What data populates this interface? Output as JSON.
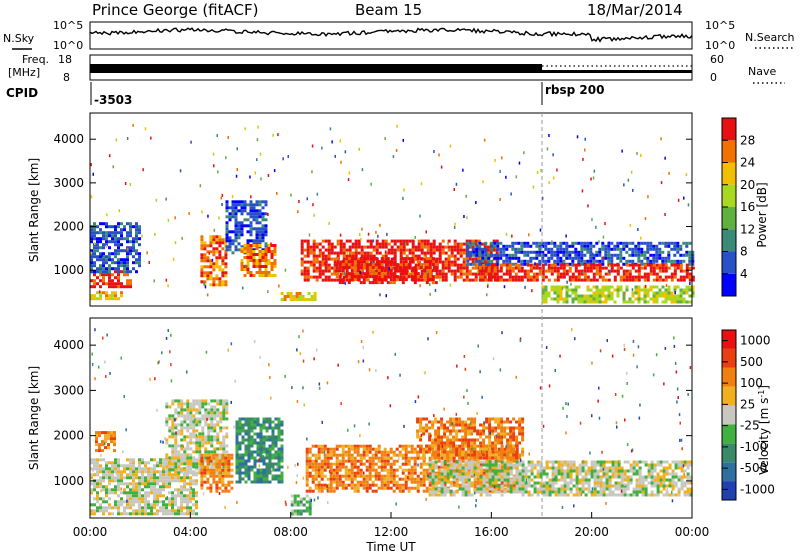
{
  "header": {
    "station": "Prince George (fitACF)",
    "beam": "Beam 15",
    "date": "18/Mar/2014"
  },
  "top_panels": {
    "nsky_label": "N.Sky",
    "nsearch_label": "N.Search",
    "freq_label_1": "Freq.",
    "freq_label_2": "[MHz]",
    "nave_label": "Nave",
    "cpid_label": "CPID",
    "left_ticks_noise": [
      "10^5",
      "10^0"
    ],
    "right_ticks_noise": [
      "10^5",
      "10^0"
    ],
    "left_ticks_freq": [
      "18",
      "8"
    ],
    "right_ticks_nave": [
      "60",
      "0"
    ],
    "cpid_segments": [
      {
        "label": "-3503",
        "start_hour": 0
      },
      {
        "label": "rbsp 200",
        "start_hour": 18
      }
    ]
  },
  "chart_data": [
    {
      "type": "heatmap",
      "title": "",
      "xlabel": "",
      "ylabel": "Slant Range [km]",
      "xlim": [
        0,
        24
      ],
      "ylim": [
        180,
        4600
      ],
      "y_ticks": [
        "1000",
        "2000",
        "3000",
        "4000"
      ],
      "colorbar": {
        "label": "Power [dB]",
        "ticks": [
          "4",
          "8",
          "12",
          "16",
          "20",
          "24",
          "28"
        ],
        "colors": [
          "#0000ff",
          "#2850c8",
          "#3a8a78",
          "#60b040",
          "#a8d820",
          "#f0c000",
          "#f07000",
          "#e81010"
        ]
      },
      "regions": [
        {
          "t0": 0.0,
          "t1": 1.6,
          "r0": 650,
          "r1": 1000,
          "level": 7
        },
        {
          "t0": 0.0,
          "t1": 2.0,
          "r0": 1000,
          "r1": 2100,
          "level": 1
        },
        {
          "t0": 0.0,
          "t1": 1.2,
          "r0": 350,
          "r1": 520,
          "level": 5
        },
        {
          "t0": 4.4,
          "t1": 5.4,
          "r0": 700,
          "r1": 1800,
          "level": 6
        },
        {
          "t0": 5.4,
          "t1": 7.0,
          "r0": 1400,
          "r1": 2600,
          "level": 1
        },
        {
          "t0": 6.0,
          "t1": 7.4,
          "r0": 900,
          "r1": 1600,
          "level": 6
        },
        {
          "t0": 7.6,
          "t1": 9.0,
          "r0": 300,
          "r1": 500,
          "level": 5
        },
        {
          "t0": 8.4,
          "t1": 16.2,
          "r0": 800,
          "r1": 1700,
          "level": 7
        },
        {
          "t0": 9.8,
          "t1": 13.8,
          "r0": 700,
          "r1": 1300,
          "level": 7
        },
        {
          "t0": 15.0,
          "t1": 24.0,
          "r0": 1150,
          "r1": 1650,
          "level": 1
        },
        {
          "t0": 15.5,
          "t1": 24.0,
          "r0": 750,
          "r1": 1150,
          "level": 7
        },
        {
          "t0": 18.0,
          "t1": 24.0,
          "r0": 300,
          "r1": 650,
          "level": 4
        }
      ]
    },
    {
      "type": "heatmap",
      "title": "",
      "xlabel": "Time UT",
      "ylabel": "Slant Range [km]",
      "xlim": [
        0,
        24
      ],
      "ylim": [
        180,
        4600
      ],
      "x_ticks": [
        "00:00",
        "04:00",
        "08:00",
        "12:00",
        "16:00",
        "20:00",
        "00:00"
      ],
      "y_ticks": [
        "1000",
        "2000",
        "3000",
        "4000"
      ],
      "colorbar": {
        "label": "Velocity [m s-1]",
        "label_main": "Velocity [m s",
        "label_sup": "-1",
        "label_end": "]",
        "ticks": [
          "1000",
          "500",
          "100",
          "25",
          "-25",
          "-100",
          "-500",
          "-1000"
        ],
        "colors": [
          "#2040b0",
          "#2e6fa0",
          "#3a8a6a",
          "#40b040",
          "#c8c8c0",
          "#f0b020",
          "#f08010",
          "#e84010",
          "#e81010"
        ]
      },
      "regions": [
        {
          "t0": 0.0,
          "t1": 4.2,
          "r0": 300,
          "r1": 1500,
          "level": 4
        },
        {
          "t0": 3.0,
          "t1": 5.4,
          "r0": 1200,
          "r1": 2800,
          "level": 4
        },
        {
          "t0": 0.2,
          "t1": 1.0,
          "r0": 1700,
          "r1": 2100,
          "level": 6
        },
        {
          "t0": 4.4,
          "t1": 5.6,
          "r0": 800,
          "r1": 1600,
          "level": 6
        },
        {
          "t0": 5.8,
          "t1": 7.6,
          "r0": 1000,
          "r1": 2400,
          "level": 2
        },
        {
          "t0": 8.6,
          "t1": 17.0,
          "r0": 800,
          "r1": 1800,
          "level": 6
        },
        {
          "t0": 13.0,
          "t1": 17.2,
          "r0": 1500,
          "r1": 2400,
          "level": 6
        },
        {
          "t0": 13.5,
          "t1": 24.0,
          "r0": 700,
          "r1": 1450,
          "level": 4
        },
        {
          "t0": 8.0,
          "t1": 8.8,
          "r0": 300,
          "r1": 700,
          "level": 3
        }
      ]
    }
  ]
}
